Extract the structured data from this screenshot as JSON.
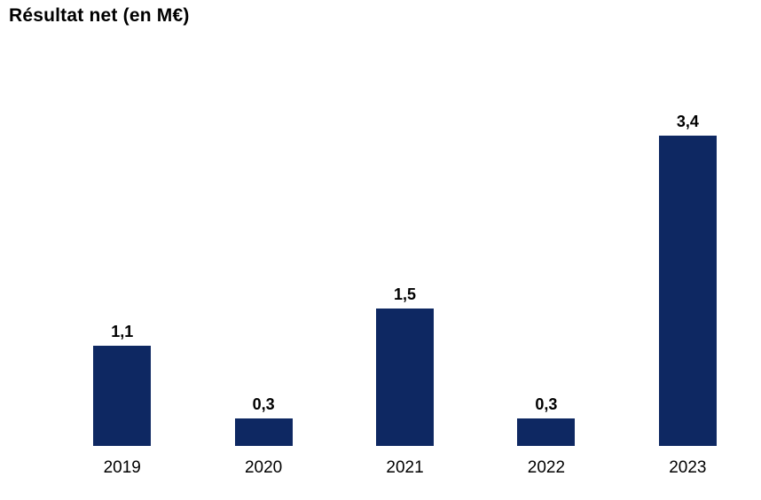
{
  "colors": {
    "bar": "#0e2862",
    "text": "#000000"
  },
  "chart_data": {
    "type": "bar",
    "title": "Résultat net (en M€)",
    "categories": [
      "2019",
      "2020",
      "2021",
      "2022",
      "2023"
    ],
    "values": [
      1.1,
      0.3,
      1.5,
      0.3,
      3.4
    ],
    "value_labels": [
      "1,1",
      "0,3",
      "1,5",
      "0,3",
      "3,4"
    ],
    "xlabel": "",
    "ylabel": "",
    "ylim": [
      0,
      3.5
    ],
    "grid": false,
    "legend": false,
    "axis_lines": false
  }
}
